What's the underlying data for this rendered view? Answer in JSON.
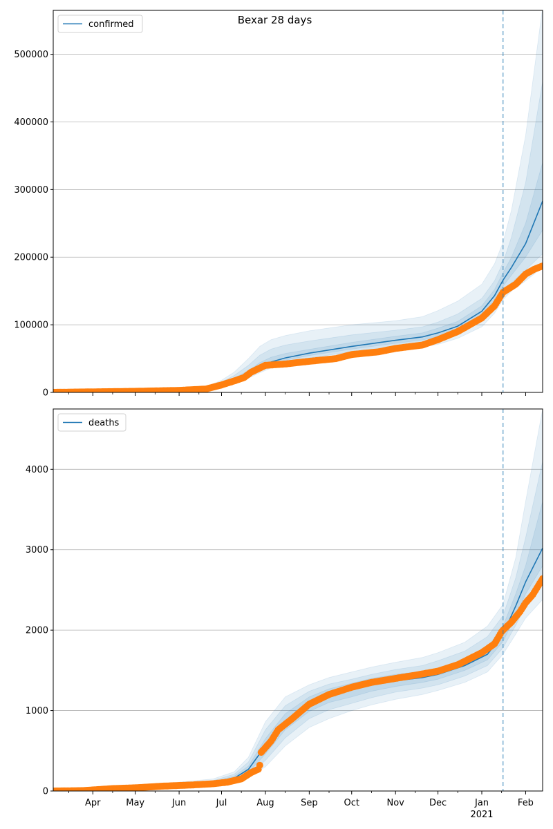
{
  "figure": {
    "title": "Bexar 28 days"
  },
  "colors": {
    "model": "#1f77b4",
    "observed": "#ff7f0e",
    "grid": "#b0b0b0",
    "band": "#1f77b4"
  },
  "x_axis": {
    "ticks": [
      {
        "date": "2020-04-01",
        "label": "Apr"
      },
      {
        "date": "2020-05-01",
        "label": "May"
      },
      {
        "date": "2020-06-01",
        "label": "Jun"
      },
      {
        "date": "2020-07-01",
        "label": "Jul"
      },
      {
        "date": "2020-08-01",
        "label": "Aug"
      },
      {
        "date": "2020-09-01",
        "label": "Sep"
      },
      {
        "date": "2020-10-01",
        "label": "Oct"
      },
      {
        "date": "2020-11-01",
        "label": "Nov"
      },
      {
        "date": "2020-12-01",
        "label": "Dec"
      },
      {
        "date": "2021-01-01",
        "label": "Jan"
      },
      {
        "date": "2021-02-01",
        "label": "Feb"
      }
    ],
    "year_label": "2021",
    "range": [
      "2020-03-04",
      "2021-02-13"
    ]
  },
  "chart_data": [
    {
      "type": "line",
      "legend": {
        "label": "confirmed",
        "placement": "top-left"
      },
      "ylim": [
        0,
        565000
      ],
      "yticks": [
        0,
        100000,
        200000,
        300000,
        400000,
        500000
      ],
      "grid": "y",
      "vline": "2021-01-16",
      "model": {
        "x": [
          "2020-03-04",
          "2020-06-01",
          "2020-06-20",
          "2020-07-01",
          "2020-07-10",
          "2020-07-20",
          "2020-07-28",
          "2020-08-05",
          "2020-08-15",
          "2020-09-01",
          "2020-10-01",
          "2020-11-01",
          "2020-11-20",
          "2020-12-01",
          "2020-12-15",
          "2021-01-01",
          "2021-01-10",
          "2021-01-16",
          "2021-01-22",
          "2021-02-01",
          "2021-02-13"
        ],
        "y": [
          1200,
          3500,
          5000,
          12000,
          19000,
          27000,
          36000,
          45000,
          51000,
          58000,
          68000,
          77000,
          82000,
          88000,
          98000,
          120000,
          143000,
          166000,
          185000,
          220000,
          283000
        ],
        "bands": [
          {
            "lo": [
              800,
              2500,
              3500,
              9000,
              15000,
              21000,
              29000,
              36000,
              41000,
              47000,
              55000,
              62000,
              67000,
              71000,
              80000,
              97000,
              117000,
              137000,
              150000,
              165000,
              185000
            ],
            "hi": [
              1800,
              5000,
              8000,
              18000,
              30000,
              50000,
              68000,
              78000,
              84000,
              91000,
              100000,
              106000,
              112000,
              121000,
              135000,
              160000,
              190000,
              222000,
              270000,
              380000,
              570000
            ]
          },
          {
            "lo": [
              900,
              2800,
              4000,
              10000,
              16500,
              23000,
              31500,
              39000,
              44000,
              51000,
              60000,
              67500,
              72500,
              77000,
              86500,
              105000,
              126000,
              148000,
              162000,
              181000,
              205000
            ],
            "hi": [
              1600,
              4500,
              6800,
              15500,
              25000,
              40000,
              55000,
              64000,
              70000,
              76000,
              85000,
              92000,
              97000,
              104000,
              116000,
              139000,
              165000,
              192000,
              230000,
              310000,
              460000
            ]
          },
          {
            "lo": [
              1000,
              3100,
              4400,
              11000,
              17500,
              25000,
              33500,
              42000,
              47500,
              54500,
              64000,
              72500,
              77500,
              82500,
              92500,
              113000,
              135000,
              157000,
              173500,
              200000,
              240000
            ],
            "hi": [
              1400,
              4000,
              5800,
              13500,
              21500,
              32000,
              44000,
              52000,
              57500,
              63500,
              74000,
              83000,
              88000,
              95000,
              105000,
              128000,
              152000,
              177000,
              200000,
              250000,
              340000
            ]
          }
        ]
      },
      "observed": [
        [
          "2020-03-04",
          100
        ],
        [
          "2020-04-01",
          800
        ],
        [
          "2020-05-01",
          1600
        ],
        [
          "2020-06-01",
          3000
        ],
        [
          "2020-06-20",
          5000
        ],
        [
          "2020-07-01",
          11000
        ],
        [
          "2020-07-10",
          17000
        ],
        [
          "2020-07-17",
          22000
        ],
        [
          "2020-07-22",
          30000
        ],
        [
          "2020-07-27",
          35000
        ],
        [
          "2020-08-01",
          40000
        ],
        [
          "2020-08-15",
          42000
        ],
        [
          "2020-09-01",
          46000
        ],
        [
          "2020-09-20",
          50000
        ],
        [
          "2020-10-01",
          56000
        ],
        [
          "2020-10-20",
          60000
        ],
        [
          "2020-11-01",
          65000
        ],
        [
          "2020-11-20",
          70000
        ],
        [
          "2020-12-01",
          78000
        ],
        [
          "2020-12-15",
          90000
        ],
        [
          "2021-01-01",
          110000
        ],
        [
          "2021-01-10",
          128000
        ],
        [
          "2021-01-16",
          148000
        ],
        [
          "2021-01-25",
          160000
        ],
        [
          "2021-02-01",
          175000
        ],
        [
          "2021-02-07",
          182000
        ],
        [
          "2021-02-13",
          187000
        ]
      ]
    },
    {
      "type": "line",
      "legend": {
        "label": "deaths",
        "placement": "top-left"
      },
      "ylim": [
        0,
        4750
      ],
      "yticks": [
        0,
        1000,
        2000,
        3000,
        4000
      ],
      "grid": "y",
      "vline": "2021-01-16",
      "model": {
        "x": [
          "2020-03-04",
          "2020-06-01",
          "2020-06-25",
          "2020-07-10",
          "2020-07-20",
          "2020-08-01",
          "2020-08-15",
          "2020-09-01",
          "2020-09-15",
          "2020-10-01",
          "2020-10-15",
          "2020-11-01",
          "2020-11-20",
          "2020-12-01",
          "2020-12-20",
          "2021-01-05",
          "2021-01-16",
          "2021-01-25",
          "2021-02-01",
          "2021-02-13"
        ],
        "y": [
          0,
          70,
          100,
          160,
          270,
          560,
          860,
          1090,
          1190,
          1260,
          1320,
          1370,
          1410,
          1450,
          1560,
          1700,
          1950,
          2300,
          2600,
          3020
        ],
        "bands": [
          {
            "lo": [
              0,
              50,
              70,
              110,
              170,
              300,
              560,
              790,
              900,
              1000,
              1070,
              1140,
              1200,
              1250,
              1350,
              1480,
              1700,
              1950,
              2150,
              2380
            ],
            "hi": [
              0,
              110,
              150,
              240,
              420,
              860,
              1170,
              1320,
              1410,
              1480,
              1540,
              1600,
              1660,
              1720,
              1850,
              2050,
              2320,
              2900,
              3600,
              4750
            ]
          },
          {
            "lo": [
              0,
              57,
              80,
              125,
              200,
              380,
              660,
              900,
              1010,
              1090,
              1160,
              1230,
              1280,
              1320,
              1430,
              1560,
              1780,
              2060,
              2300,
              2600
            ],
            "hi": [
              0,
              95,
              130,
              210,
              360,
              760,
              1060,
              1240,
              1330,
              1390,
              1450,
              1510,
              1560,
              1620,
              1740,
              1920,
              2180,
              2650,
              3150,
              4100
            ]
          },
          {
            "lo": [
              0,
              63,
              90,
              140,
              230,
              460,
              760,
              990,
              1100,
              1170,
              1240,
              1300,
              1350,
              1390,
              1500,
              1630,
              1860,
              2180,
              2450,
              2800
            ],
            "hi": [
              0,
              82,
              115,
              185,
              310,
              650,
              960,
              1170,
              1270,
              1340,
              1400,
              1450,
              1490,
              1530,
              1640,
              1790,
              2050,
              2450,
              2800,
              3600
            ]
          }
        ]
      },
      "observed": [
        [
          "2020-03-04",
          0
        ],
        [
          "2020-03-25",
          5
        ],
        [
          "2020-04-15",
          30
        ],
        [
          "2020-05-01",
          40
        ],
        [
          "2020-05-20",
          60
        ],
        [
          "2020-06-10",
          75
        ],
        [
          "2020-06-25",
          90
        ],
        [
          "2020-07-05",
          110
        ],
        [
          "2020-07-15",
          150
        ],
        [
          "2020-07-22",
          230
        ],
        [
          "2020-07-27",
          270
        ],
        [
          "2020-07-28",
          320
        ],
        [
          "2020-07-29",
          480
        ],
        [
          "2020-08-05",
          620
        ],
        [
          "2020-08-10",
          760
        ],
        [
          "2020-08-20",
          900
        ],
        [
          "2020-09-01",
          1080
        ],
        [
          "2020-09-15",
          1200
        ],
        [
          "2020-10-01",
          1290
        ],
        [
          "2020-10-15",
          1350
        ],
        [
          "2020-11-01",
          1400
        ],
        [
          "2020-11-15",
          1440
        ],
        [
          "2020-12-01",
          1490
        ],
        [
          "2020-12-15",
          1570
        ],
        [
          "2021-01-01",
          1720
        ],
        [
          "2021-01-10",
          1830
        ],
        [
          "2021-01-15",
          1980
        ],
        [
          "2021-01-16",
          2000
        ],
        [
          "2021-01-22",
          2100
        ],
        [
          "2021-01-28",
          2230
        ],
        [
          "2021-02-01",
          2340
        ],
        [
          "2021-02-06",
          2440
        ],
        [
          "2021-02-13",
          2640
        ]
      ]
    }
  ]
}
